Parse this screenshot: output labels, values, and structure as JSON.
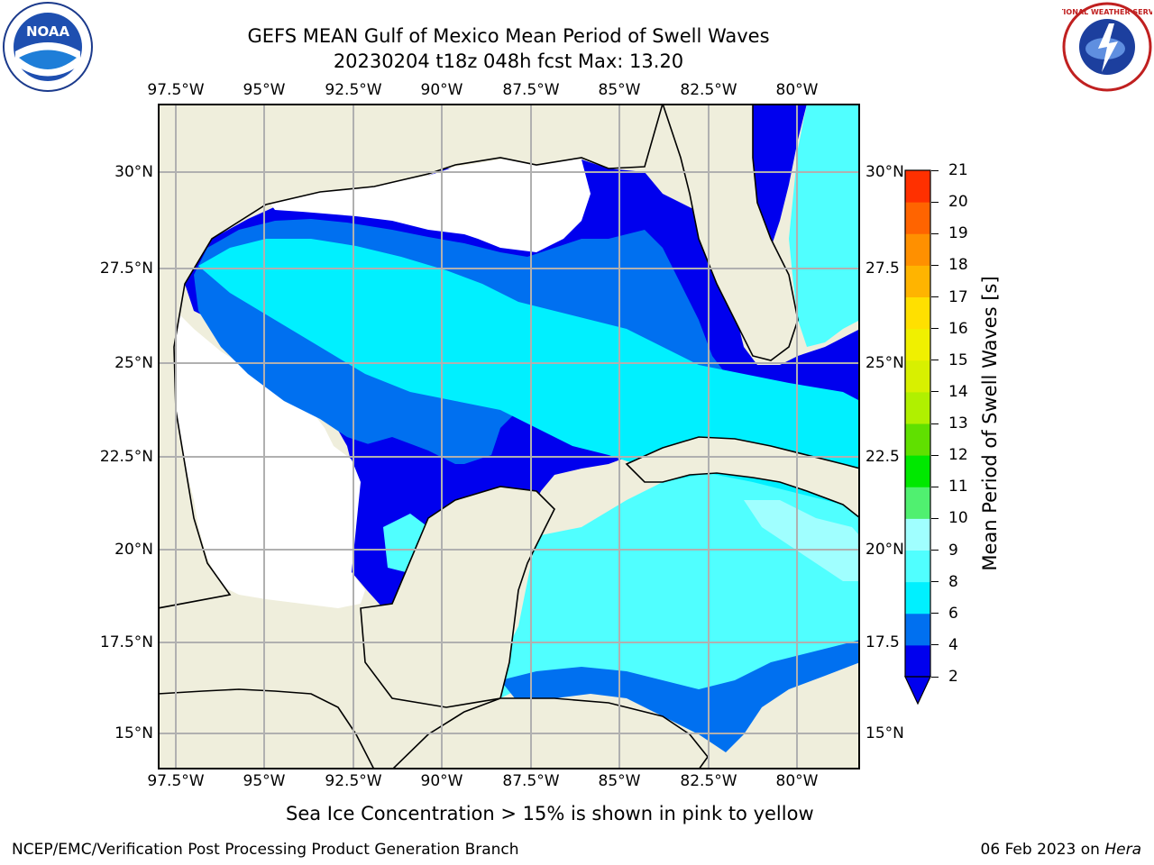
{
  "header": {
    "title_line1": "GEFS MEAN Gulf of Mexico Mean Period of Swell Waves",
    "title_line2": "20230204 t18z 048h fcst   Max: 13.20"
  },
  "map": {
    "lon_ticks": [
      "97.5°W",
      "95°W",
      "92.5°W",
      "90°W",
      "87.5°W",
      "85°W",
      "82.5°W",
      "80°W"
    ],
    "lat_ticks_left": [
      "30°N",
      "27.5°N",
      "25°N",
      "22.5°N",
      "20°N",
      "17.5°N",
      "15°N"
    ],
    "lat_ticks_right": [
      "30°N",
      "27.5",
      "25°N",
      "22.5",
      "20°N",
      "17.5",
      "15°N"
    ],
    "land_color": "#efeedc",
    "nodata_color": "#ffffff",
    "grid_color": "#b0b0b0"
  },
  "colorbar": {
    "label": "Mean Period of Swell Waves [s]",
    "levels": [
      "2",
      "4",
      "6",
      "8",
      "9",
      "10",
      "11",
      "12",
      "13",
      "14",
      "15",
      "16",
      "17",
      "18",
      "19",
      "20",
      "21"
    ],
    "colors": [
      "#0000ee",
      "#0070f0",
      "#00f0ff",
      "#50ffff",
      "#a0ffff",
      "#50f070",
      "#00e800",
      "#60e000",
      "#b0f000",
      "#d8f000",
      "#f0f000",
      "#ffe000",
      "#ffb400",
      "#ff9000",
      "#ff6400",
      "#ff3000",
      "#ff0000"
    ]
  },
  "footer": {
    "note": "Sea Ice Concentration > 15% is shown in pink to yellow",
    "credit": "NCEP/EMC/Verification Post Processing Product Generation Branch",
    "date": "06 Feb 2023 on",
    "host": "Hera"
  },
  "logos": {
    "left": "noaa-logo",
    "right": "nws-logo",
    "left_text": "NOAA",
    "right_text": "NATIONAL WEATHER SERVICE"
  }
}
